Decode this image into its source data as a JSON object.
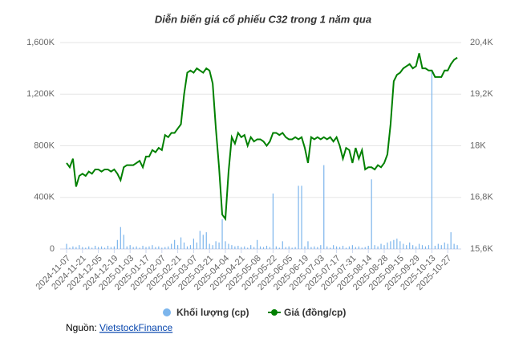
{
  "chart_data": {
    "type": "bar-line",
    "title": "Diễn biến giá cổ phiếu C32 trong 1 năm qua",
    "categories": [
      "2024-11-07",
      null,
      null,
      null,
      null,
      "2024-11-21",
      null,
      null,
      null,
      null,
      "2024-12-05",
      null,
      null,
      null,
      null,
      "2024-12-19",
      null,
      null,
      null,
      null,
      "2025-01-03",
      null,
      null,
      null,
      null,
      "2025-01-17",
      null,
      null,
      null,
      null,
      "2025-02-07",
      null,
      null,
      null,
      null,
      "2025-02-21",
      null,
      null,
      null,
      null,
      "2025-03-07",
      null,
      null,
      null,
      null,
      "2025-03-21",
      null,
      null,
      null,
      null,
      "2025-04-04",
      null,
      null,
      null,
      null,
      "2025-04-21",
      null,
      null,
      null,
      null,
      "2025-05-08",
      null,
      null,
      null,
      null,
      "2025-05-22",
      null,
      null,
      null,
      null,
      "2025-06-05",
      null,
      null,
      null,
      null,
      "2025-06-19",
      null,
      null,
      null,
      null,
      "2025-07-03",
      null,
      null,
      null,
      null,
      "2025-07-17",
      null,
      null,
      null,
      null,
      "2025-07-31",
      null,
      null,
      null,
      null,
      "2025-08-14",
      null,
      null,
      null,
      null,
      "2025-08-28",
      null,
      null,
      null,
      null,
      "2025-09-15",
      null,
      null,
      null,
      null,
      "2025-09-29",
      null,
      null,
      null,
      null,
      "2025-10-13",
      null,
      null,
      null,
      null,
      "2025-10-27",
      null,
      null,
      null
    ],
    "series": [
      {
        "name": "Khối lượng (cp)",
        "color": "#7cb5ec",
        "kind": "bar",
        "axis": "y",
        "values": [
          40,
          10,
          20,
          15,
          30,
          15,
          10,
          20,
          10,
          25,
          15,
          20,
          10,
          25,
          15,
          20,
          70,
          170,
          110,
          20,
          30,
          15,
          20,
          10,
          25,
          15,
          20,
          30,
          15,
          20,
          10,
          15,
          20,
          40,
          70,
          30,
          90,
          50,
          20,
          30,
          80,
          50,
          140,
          110,
          130,
          40,
          30,
          60,
          50,
          230,
          60,
          40,
          30,
          20,
          25,
          15,
          20,
          10,
          30,
          15,
          70,
          20,
          15,
          25,
          15,
          430,
          20,
          10,
          60,
          15,
          20,
          10,
          15,
          490,
          490,
          20,
          60,
          15,
          20,
          15,
          30,
          650,
          20,
          10,
          30,
          20,
          15,
          25,
          10,
          20,
          30,
          15,
          20,
          10,
          15,
          25,
          540,
          30,
          20,
          40,
          30,
          50,
          60,
          70,
          80,
          60,
          40,
          30,
          50,
          30,
          20,
          40,
          30,
          20,
          30,
          1380,
          25,
          40,
          30,
          50,
          40,
          130,
          40,
          30
        ]
      },
      {
        "name": "Giá (đồng/cp)",
        "color": "#008000",
        "kind": "line",
        "axis": "y2",
        "values": [
          17.6,
          17.5,
          17.7,
          17.05,
          17.3,
          17.35,
          17.3,
          17.4,
          17.35,
          17.45,
          17.45,
          17.4,
          17.45,
          17.45,
          17.4,
          17.45,
          17.35,
          17.2,
          17.5,
          17.55,
          17.55,
          17.55,
          17.6,
          17.65,
          17.5,
          17.75,
          17.75,
          17.9,
          17.85,
          17.95,
          17.9,
          18.25,
          18.2,
          18.3,
          18.3,
          18.4,
          18.5,
          19.2,
          19.7,
          19.75,
          19.7,
          19.8,
          19.75,
          19.7,
          19.8,
          19.75,
          19.45,
          18.4,
          17.5,
          16.4,
          16.3,
          17.4,
          18.2,
          18.05,
          18.3,
          18.2,
          18.25,
          18.0,
          18.2,
          18.1,
          18.15,
          18.15,
          18.1,
          18.0,
          18.1,
          18.3,
          18.3,
          18.25,
          18.3,
          18.2,
          18.15,
          18.15,
          18.2,
          18.15,
          18.2,
          17.95,
          17.6,
          18.2,
          18.15,
          18.2,
          18.15,
          18.2,
          18.15,
          18.2,
          18.1,
          18.2,
          18.0,
          17.7,
          17.95,
          17.9,
          17.6,
          17.95,
          17.7,
          17.9,
          17.45,
          17.5,
          17.5,
          17.45,
          17.55,
          17.5,
          17.6,
          17.8,
          18.5,
          19.5,
          19.65,
          19.7,
          19.8,
          19.85,
          19.9,
          19.8,
          19.85,
          20.15,
          19.8,
          19.8,
          19.75,
          19.75,
          19.6,
          19.6,
          19.6,
          19.75,
          19.75,
          19.9,
          20.0,
          20.05
        ]
      }
    ],
    "ylim": [
      0,
      1600
    ],
    "yticks": [
      {
        "value": 0,
        "label": "0"
      },
      {
        "value": 400,
        "label": "400K"
      },
      {
        "value": 800,
        "label": "800K"
      },
      {
        "value": 1200,
        "label": "1,200K"
      },
      {
        "value": 1600,
        "label": "1,600K"
      }
    ],
    "y2lim": [
      15.6,
      20.4
    ],
    "y2ticks": [
      {
        "value": 15.6,
        "label": "15,6K"
      },
      {
        "value": 16.8,
        "label": "16,8K"
      },
      {
        "value": 18,
        "label": "18K"
      },
      {
        "value": 19.2,
        "label": "19,2K"
      },
      {
        "value": 20.4,
        "label": "20,4K"
      }
    ],
    "grid": true,
    "legend": "bottom",
    "source": {
      "label": "Nguồn:",
      "link": "VietstockFinance"
    }
  }
}
